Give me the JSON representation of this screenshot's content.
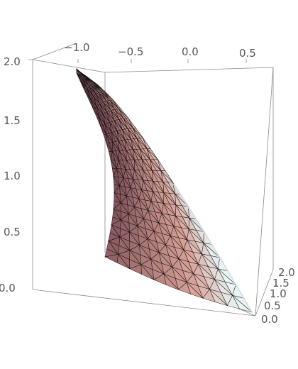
{
  "chart_data": {
    "type": "surface3d",
    "title": "",
    "axes": {
      "x": {
        "ticks": [
          "−1.0",
          "−0.5",
          "0.0",
          "0.5"
        ],
        "range": [
          -1.35,
          0.75
        ]
      },
      "y": {
        "ticks": [
          "0.0",
          "0.5",
          "1.0",
          "1.5",
          "2.0"
        ],
        "range": [
          0,
          2
        ]
      },
      "z": {
        "ticks": [
          "0.0",
          "0.5",
          "1.0",
          "1.5",
          "2.0"
        ],
        "range": [
          0,
          2
        ]
      }
    },
    "grid": false,
    "boxed": true,
    "surface": {
      "description_shape": "curved horn-shaped sheet with triangulated mesh",
      "color_dark": "#3a2127",
      "color_mid": "#8c5d61",
      "color_light": "#d9a398",
      "highlight": "#e8f4f4",
      "mesh_color": "#0d0b0e"
    }
  }
}
